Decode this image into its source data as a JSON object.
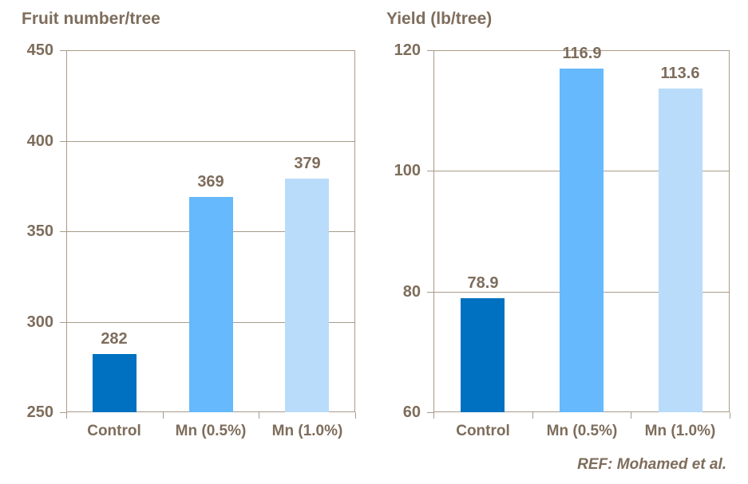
{
  "figure": {
    "background": "#FFFFFF",
    "text_color": "#7E6D5C",
    "axis_color": "#A89B8B",
    "reference": "REF: Mohamed et al."
  },
  "chart_data": [
    {
      "type": "bar",
      "title": "Fruit number/tree",
      "categories": [
        "Control",
        "Mn (0.5%)",
        "Mn (1.0%)"
      ],
      "values": [
        282,
        369,
        379
      ],
      "value_labels": [
        "282",
        "369",
        "379"
      ],
      "bar_colors": [
        "#0071C1",
        "#66B9FC",
        "#B9DCFA"
      ],
      "xlabel": "",
      "ylabel": "",
      "ylim": [
        250,
        450
      ],
      "yticks": [
        250,
        300,
        350,
        400,
        450
      ],
      "grid": true,
      "legend": "none"
    },
    {
      "type": "bar",
      "title": "Yield (lb/tree)",
      "categories": [
        "Control",
        "Mn (0.5%)",
        "Mn (1.0%)"
      ],
      "values": [
        78.9,
        116.9,
        113.6
      ],
      "value_labels": [
        "78.9",
        "116.9",
        "113.6"
      ],
      "bar_colors": [
        "#0071C1",
        "#66B9FC",
        "#B9DCFA"
      ],
      "xlabel": "",
      "ylabel": "",
      "ylim": [
        60,
        120
      ],
      "yticks": [
        60,
        80,
        100,
        120
      ],
      "grid": true,
      "legend": "none"
    }
  ]
}
